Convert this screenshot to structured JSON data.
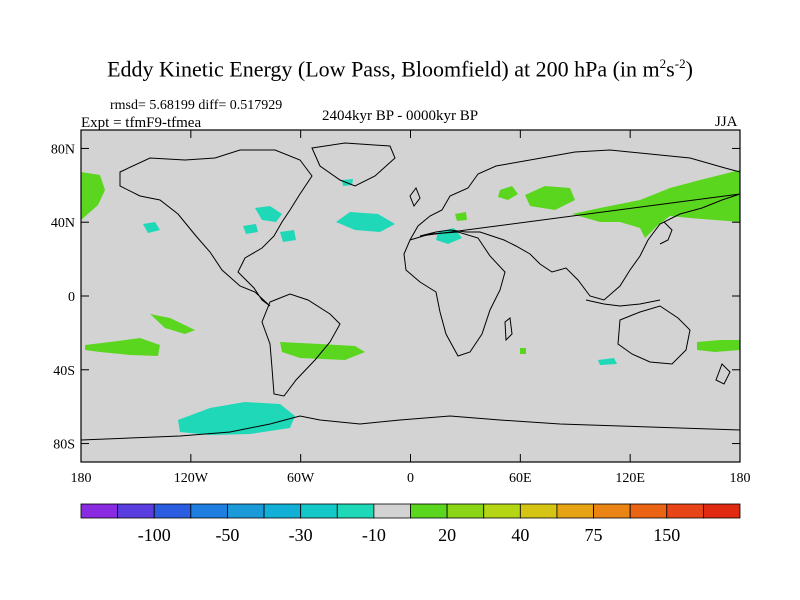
{
  "title": {
    "main": "Eddy Kinetic Energy (Low Pass, Bloomfield) at 200 hPa (in m",
    "sup1": "2",
    "mid": "s",
    "sup2": "-2",
    "close": ")"
  },
  "stats": {
    "rmsd": "rmsd= 5.68199 diff= 0.517929"
  },
  "experiment": "Expt = tfmF9-tfmea",
  "period": "2404kyr BP - 0000kyr BP",
  "season": "JJA",
  "axes": {
    "lat_ticks": [
      {
        "label": "80N",
        "lat": 80
      },
      {
        "label": "40N",
        "lat": 40
      },
      {
        "label": "0",
        "lat": 0
      },
      {
        "label": "40S",
        "lat": -40
      },
      {
        "label": "80S",
        "lat": -80
      }
    ],
    "lon_ticks": [
      {
        "label": "180",
        "lon": -180
      },
      {
        "label": "120W",
        "lon": -120
      },
      {
        "label": "60W",
        "lon": -60
      },
      {
        "label": "0",
        "lon": 0
      },
      {
        "label": "60E",
        "lon": 60
      },
      {
        "label": "120E",
        "lon": 120
      },
      {
        "label": "180",
        "lon": 180
      }
    ]
  },
  "colorbar": {
    "colors": [
      "#8a2be2",
      "#5a3ddf",
      "#2a5de0",
      "#1e7fe0",
      "#1a9ad8",
      "#12b0d6",
      "#14c8c8",
      "#1ed8b8",
      "#d3d3d3",
      "#5bd61e",
      "#8ad616",
      "#b4d614",
      "#d6c414",
      "#e6a414",
      "#ea8414",
      "#ea6414",
      "#e84418",
      "#e02a12"
    ],
    "labels": [
      {
        "text": "-100",
        "boundary": 2
      },
      {
        "text": "-50",
        "boundary": 4
      },
      {
        "text": "-30",
        "boundary": 6
      },
      {
        "text": "-10",
        "boundary": 8
      },
      {
        "text": "20",
        "boundary": 10
      },
      {
        "text": "40",
        "boundary": 12
      },
      {
        "text": "75",
        "boundary": 14
      },
      {
        "text": "150",
        "boundary": 16
      }
    ]
  },
  "colors": {
    "background": "#d3d3d3",
    "positive": "#5bd61e",
    "negative": "#1ed8b8",
    "coast": "#000000"
  }
}
